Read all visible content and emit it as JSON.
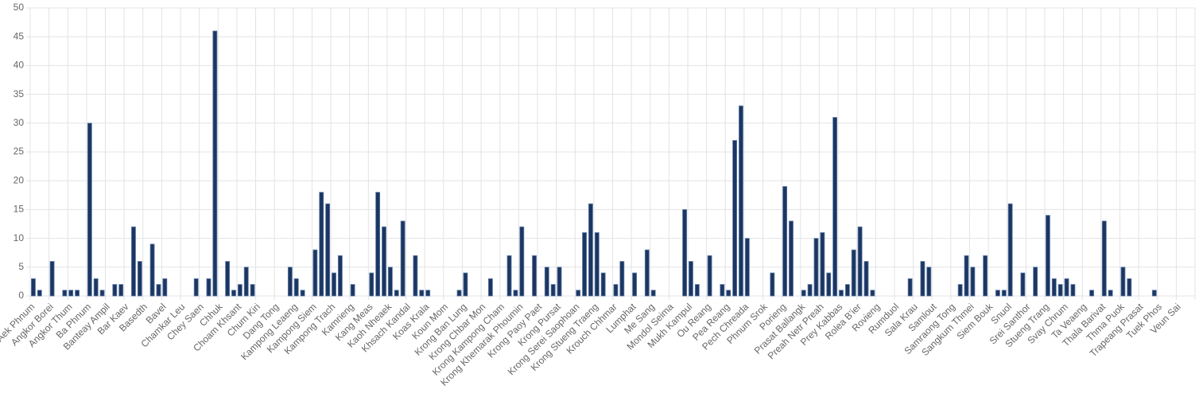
{
  "chart_data": {
    "type": "bar",
    "categories": [
      "Aek Phnum",
      null,
      null,
      "Angkor Borei",
      null,
      null,
      "Angkor Thum",
      null,
      null,
      "Ba Phnum",
      null,
      null,
      "Banteay Ampil",
      null,
      null,
      "Bar Kaev",
      null,
      null,
      "Basedth",
      null,
      null,
      "Bavel",
      null,
      null,
      "Chamkar Leu",
      null,
      null,
      "Chey Saen",
      null,
      null,
      "Chhuk",
      null,
      null,
      "Choam Khsant",
      null,
      null,
      "Chum Kiri",
      null,
      null,
      "Dang Tong",
      null,
      null,
      "Kampong Leaeng",
      null,
      null,
      "Kampong Siem",
      null,
      null,
      "Kampong Trach",
      null,
      null,
      "Kamrieng",
      null,
      null,
      "Kang Meas",
      null,
      null,
      "Kaoh Nheaek",
      null,
      null,
      "Khsach Kandal",
      null,
      null,
      "Koas Krala",
      null,
      null,
      "Koun Mom",
      null,
      null,
      "Krong Ban Lung",
      null,
      null,
      "Krong Chbar Mon",
      null,
      null,
      "Krong Kampong Cham",
      null,
      null,
      "Krong Khemarak Phoumin",
      null,
      null,
      "Krong Paoy Paet",
      null,
      null,
      "Krong Pursat",
      null,
      null,
      "Krong Serei Saophoan",
      null,
      null,
      "Krong Stueng Traeng",
      null,
      null,
      "Krouch Chhmar",
      null,
      null,
      "Lumphat",
      null,
      null,
      "Me Sang",
      null,
      null,
      "Mondol Seima",
      null,
      null,
      "Mukh Kampul",
      null,
      null,
      "Ou Reang",
      null,
      null,
      "Pea Reang",
      null,
      null,
      "Pech Chreada",
      null,
      null,
      "Phnum Srok",
      null,
      null,
      "Porieng",
      null,
      null,
      "Prasat Ballangk",
      null,
      null,
      "Preah Netr Preah",
      null,
      null,
      "Prey Kabbas",
      null,
      null,
      "Rolea B'ier",
      null,
      null,
      "Rovieng",
      null,
      null,
      "Rumduol",
      null,
      null,
      "Sala Krau",
      null,
      null,
      "Samlout",
      null,
      null,
      "Samraong Tong",
      null,
      null,
      "Sangkum Thmei",
      null,
      null,
      "Siem Bouk",
      null,
      null,
      "Snuol",
      null,
      null,
      "Srei Santhor",
      null,
      null,
      "Stueng Trang",
      null,
      null,
      "Svay Chrum",
      null,
      null,
      "Ta Veaeng",
      null,
      null,
      "Thala Barivat",
      null,
      null,
      "Thma Puok",
      null,
      null,
      "Trapeang Prasat",
      null,
      null,
      "Tuek Phos",
      null,
      null,
      "Veun Sai",
      null,
      null
    ],
    "values": [
      3,
      1,
      0,
      6,
      0,
      1,
      1,
      1,
      0,
      30,
      3,
      1,
      0,
      2,
      2,
      0,
      12,
      6,
      0,
      9,
      2,
      3,
      0,
      0,
      0,
      0,
      3,
      0,
      3,
      46,
      0,
      6,
      1,
      2,
      5,
      2,
      0,
      0,
      0,
      0,
      0,
      5,
      3,
      1,
      0,
      8,
      18,
      16,
      4,
      7,
      0,
      2,
      0,
      0,
      4,
      18,
      12,
      5,
      1,
      13,
      0,
      7,
      1,
      1,
      0,
      0,
      0,
      0,
      1,
      4,
      0,
      0,
      0,
      3,
      0,
      0,
      7,
      1,
      12,
      0,
      7,
      0,
      5,
      2,
      5,
      0,
      0,
      1,
      11,
      16,
      11,
      4,
      0,
      2,
      6,
      0,
      4,
      0,
      8,
      1,
      0,
      0,
      0,
      0,
      15,
      6,
      2,
      0,
      7,
      0,
      2,
      1,
      27,
      33,
      10,
      0,
      0,
      0,
      4,
      0,
      19,
      13,
      0,
      1,
      2,
      10,
      11,
      4,
      31,
      1,
      2,
      8,
      12,
      6,
      1,
      0,
      0,
      0,
      0,
      0,
      3,
      0,
      6,
      5,
      0,
      0,
      0,
      0,
      2,
      7,
      5,
      0,
      7,
      0,
      1,
      1,
      16,
      0,
      4,
      0,
      5,
      0,
      14,
      3,
      2,
      3,
      2,
      0,
      0,
      1,
      0,
      13,
      1,
      0,
      5,
      3,
      0,
      0,
      0,
      1,
      0,
      0,
      0,
      0,
      0,
      0
    ],
    "color": "#1d3661",
    "ylim": [
      0,
      50
    ],
    "yticks": [
      0,
      5,
      10,
      15,
      20,
      25,
      30,
      35,
      40,
      45,
      50
    ],
    "grid": true
  }
}
